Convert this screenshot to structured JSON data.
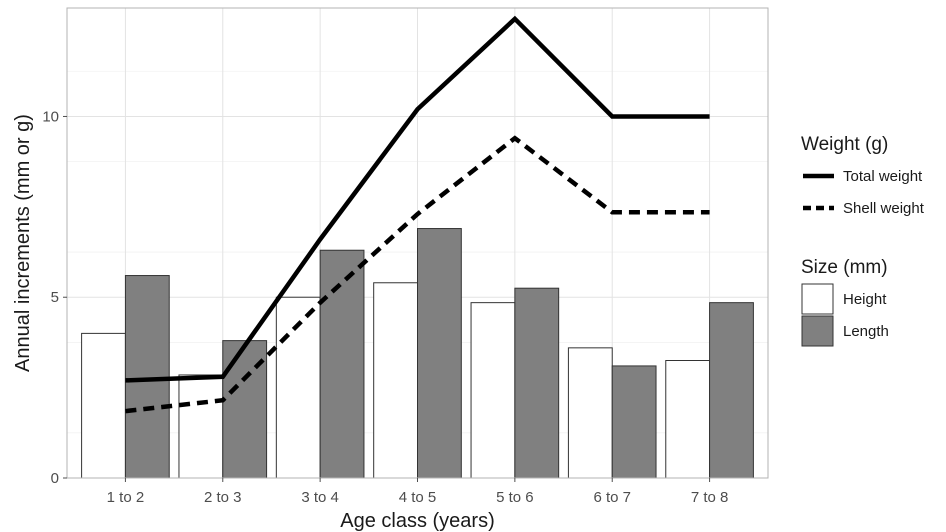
{
  "chart_data": {
    "type": "bar",
    "xlabel": "Age class (years)",
    "ylabel": "Annual increments (mm or g)",
    "categories": [
      "1 to 2",
      "2 to 3",
      "3 to 4",
      "4 to 5",
      "5 to 6",
      "6 to 7",
      "7 to 8"
    ],
    "ylim": [
      0,
      13
    ],
    "yticks": [
      0,
      5,
      10
    ],
    "grid": true,
    "bar_series": [
      {
        "name": "Height",
        "color": "#ffffff",
        "values": [
          4.0,
          2.85,
          5.0,
          5.4,
          4.85,
          3.6,
          3.25
        ]
      },
      {
        "name": "Length",
        "color": "#808080",
        "values": [
          5.6,
          3.8,
          6.3,
          6.9,
          5.25,
          3.1,
          4.85
        ]
      }
    ],
    "line_series": [
      {
        "name": "Total weight",
        "style": "solid",
        "color": "#000000",
        "values": [
          2.7,
          2.8,
          6.6,
          10.2,
          12.7,
          10.0,
          10.0
        ]
      },
      {
        "name": "Shell weight",
        "style": "dashed",
        "color": "#000000",
        "values": [
          1.85,
          2.15,
          4.85,
          7.3,
          9.4,
          7.35,
          7.35
        ]
      }
    ],
    "legends": [
      {
        "title": "Weight (g)",
        "kind": "line",
        "entries": [
          "Total weight",
          "Shell weight"
        ]
      },
      {
        "title": "Size (mm)",
        "kind": "bar",
        "entries": [
          "Height",
          "Length"
        ]
      }
    ],
    "legend_position": "right"
  }
}
